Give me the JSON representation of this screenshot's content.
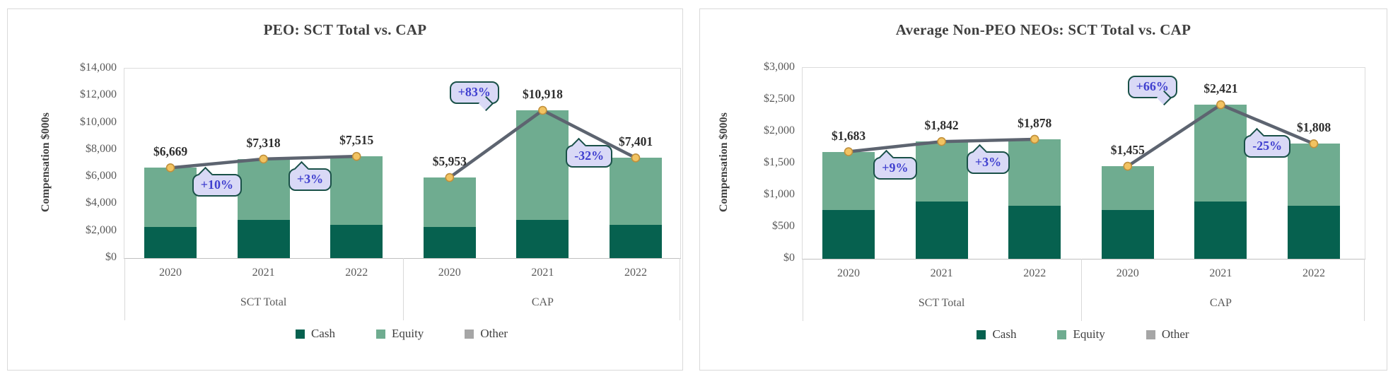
{
  "colors": {
    "cash": "#06614f",
    "equity": "#6fac90",
    "other": "#a6a6a6",
    "line": "#5d6470",
    "marker_fill": "#f2c361",
    "marker_stroke": "#c0903c",
    "callout_fill": "#d9d9f6",
    "callout_border": "#1a5148",
    "callout_text": "#4040cf",
    "axis_line": "#c0c0c0",
    "plot_border": "#dcdcdc",
    "tick_text": "#595959",
    "title_text": "#3f3f3f",
    "data_label_text": "#2e2e2e",
    "legend_text": "#404040"
  },
  "legend": {
    "items": [
      {
        "label": "Cash",
        "key": "cash"
      },
      {
        "label": "Equity",
        "key": "equity"
      },
      {
        "label": "Other",
        "key": "other"
      }
    ]
  },
  "chart_data": [
    {
      "type": "bar",
      "subtype": "stacked-bar-with-line",
      "title": "PEO: SCT Total vs. CAP",
      "ylabel": "Compensation $000s",
      "ylim": [
        0,
        14000
      ],
      "yticks": {
        "step": 2000,
        "labels": [
          "$14,000",
          "$12,000",
          "$10,000",
          "$8,000",
          "$6,000",
          "$4,000",
          "$2,000",
          "$0"
        ]
      },
      "grid": "off",
      "legend_position": "bottom",
      "stack_order": [
        "cash",
        "equity",
        "other"
      ],
      "groups": [
        {
          "label": "SCT Total",
          "categories": [
            "2020",
            "2021",
            "2022"
          ],
          "totals": [
            6669,
            7318,
            7515
          ],
          "total_labels": [
            "$6,669",
            "$7,318",
            "$7,515"
          ],
          "cash": [
            2300,
            2800,
            2450
          ],
          "equity": [
            4369,
            4518,
            5065
          ],
          "other": [
            0,
            0,
            0
          ]
        },
        {
          "label": "CAP",
          "categories": [
            "2020",
            "2021",
            "2022"
          ],
          "totals": [
            5953,
            10918,
            7401
          ],
          "total_labels": [
            "$5,953",
            "$10,918",
            "$7,401"
          ],
          "cash": [
            2300,
            2800,
            2450
          ],
          "equity": [
            3653,
            8118,
            4951
          ],
          "other": [
            0,
            0,
            0
          ]
        }
      ],
      "callouts": [
        {
          "text": "+10%",
          "from": [
            0,
            0
          ],
          "to": [
            0,
            1
          ],
          "placement": "below"
        },
        {
          "text": "+3%",
          "from": [
            0,
            1
          ],
          "to": [
            0,
            2
          ],
          "placement": "below"
        },
        {
          "text": "+83%",
          "from": [
            1,
            0
          ],
          "to": [
            1,
            1
          ],
          "placement": "above"
        },
        {
          "text": "-32%",
          "from": [
            1,
            1
          ],
          "to": [
            1,
            2
          ],
          "placement": "below"
        }
      ]
    },
    {
      "type": "bar",
      "subtype": "stacked-bar-with-line",
      "title": "Average Non-PEO NEOs: SCT Total vs. CAP",
      "ylabel": "Compensation $000s",
      "ylim": [
        0,
        3000
      ],
      "yticks": {
        "step": 500,
        "labels": [
          "$3,000",
          "$2,500",
          "$2,000",
          "$1,500",
          "$1,000",
          "$500",
          "$0"
        ]
      },
      "grid": "off",
      "legend_position": "bottom",
      "stack_order": [
        "cash",
        "equity",
        "other"
      ],
      "groups": [
        {
          "label": "SCT Total",
          "categories": [
            "2020",
            "2021",
            "2022"
          ],
          "totals": [
            1683,
            1842,
            1878
          ],
          "total_labels": [
            "$1,683",
            "$1,842",
            "$1,878"
          ],
          "cash": [
            770,
            900,
            830
          ],
          "equity": [
            913,
            942,
            1048
          ],
          "other": [
            0,
            0,
            0
          ]
        },
        {
          "label": "CAP",
          "categories": [
            "2020",
            "2021",
            "2022"
          ],
          "totals": [
            1455,
            2421,
            1808
          ],
          "total_labels": [
            "$1,455",
            "$2,421",
            "$1,808"
          ],
          "cash": [
            770,
            900,
            830
          ],
          "equity": [
            685,
            1521,
            978
          ],
          "other": [
            0,
            0,
            0
          ]
        }
      ],
      "callouts": [
        {
          "text": "+9%",
          "from": [
            0,
            0
          ],
          "to": [
            0,
            1
          ],
          "placement": "below"
        },
        {
          "text": "+3%",
          "from": [
            0,
            1
          ],
          "to": [
            0,
            2
          ],
          "placement": "below"
        },
        {
          "text": "+66%",
          "from": [
            1,
            0
          ],
          "to": [
            1,
            1
          ],
          "placement": "above"
        },
        {
          "text": "-25%",
          "from": [
            1,
            1
          ],
          "to": [
            1,
            2
          ],
          "placement": "below"
        }
      ]
    }
  ]
}
